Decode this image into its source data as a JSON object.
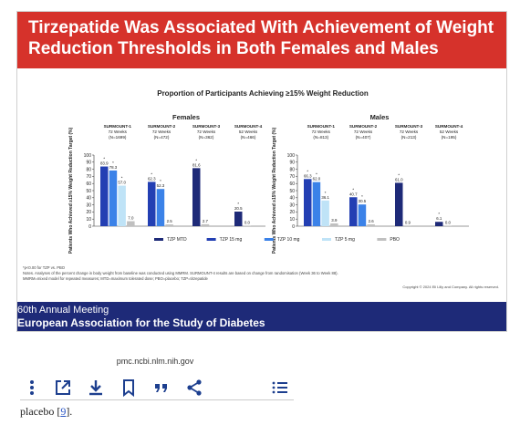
{
  "slide": {
    "title_line1": "Tirzepatide Was Associated With Achievement of Weight",
    "title_line2": "Reduction Thresholds in Both Females and Males",
    "footnote1": "*p<0.00 for TZP vs. PBO",
    "footnote2": "Notes. Analyses of the percent change in body weight from baseline was conducted using MMRM. SURMOUNT-4 results are based on change from randomisation (Week 36 to Week 88).",
    "footnote3": "MMRM=mixed model for repeated measures; MTD=maximum tolerated dose; PBO=placebo; TZP=tirzepatide",
    "copyright": "Copyright © 2024 Eli Lilly and Company. All rights reserved.",
    "meeting_line1": "60th Annual Meeting",
    "meeting_line2": "European Association for the Study of Diabetes"
  },
  "chart_data": {
    "type": "bar",
    "title": "Proportion of Participants Achieving ≥15% Weight Reduction",
    "ylabel": "Patients Who Achieved ≥15% Weight Reduction Target (%)",
    "ylim": [
      0,
      100
    ],
    "yticks": [
      0,
      10,
      20,
      30,
      40,
      50,
      60,
      70,
      80,
      90,
      100
    ],
    "legend": [
      {
        "name": "TZP MTD",
        "color": "#1e2a78"
      },
      {
        "name": "TZP 15 mg",
        "color": "#233fb3"
      },
      {
        "name": "TZP 10 mg",
        "color": "#3b82e8"
      },
      {
        "name": "TZP 5 mg",
        "color": "#bfe3f7"
      },
      {
        "name": "PBO",
        "color": "#c0c0c0"
      }
    ],
    "panels": [
      {
        "name": "Females",
        "groups": [
          {
            "line1": "SURMOUNT-1",
            "line2": "72 Weeks",
            "line3": "(N=1699)",
            "bars": [
              {
                "series": "TZP 15 mg",
                "value": 83.9,
                "label": "83.9",
                "star": true
              },
              {
                "series": "TZP 10 mg",
                "value": 78.3,
                "label": "78.3",
                "star": true
              },
              {
                "series": "TZP 5 mg",
                "value": 57.0,
                "label": "57.0",
                "star": true
              },
              {
                "series": "PBO",
                "value": 7.0,
                "label": "7.0",
                "star": false
              }
            ]
          },
          {
            "line1": "SURMOUNT-2",
            "line2": "72 Weeks",
            "line3": "(N=472)",
            "bars": [
              {
                "series": "TZP 15 mg",
                "value": 62.3,
                "label": "62.3",
                "star": true
              },
              {
                "series": "TZP 10 mg",
                "value": 52.3,
                "label": "52.3",
                "star": true
              },
              {
                "series": "PBO",
                "value": 2.5,
                "label": "2.5",
                "star": false
              }
            ]
          },
          {
            "line1": "SURMOUNT-3",
            "line2": "72 Weeks",
            "line3": "(N=362)",
            "bars": [
              {
                "series": "TZP MTD",
                "value": 81.6,
                "label": "81.6",
                "star": true
              },
              {
                "series": "PBO",
                "value": 2.7,
                "label": "2.7",
                "star": false
              }
            ]
          },
          {
            "line1": "SURMOUNT-4",
            "line2": "52 Weeks",
            "line3": "(N=466)",
            "bars": [
              {
                "series": "TZP MTD",
                "value": 20.5,
                "label": "20.5",
                "star": true
              },
              {
                "series": "PBO",
                "value": 0.0,
                "label": "0.0",
                "star": false
              }
            ]
          }
        ]
      },
      {
        "name": "Males",
        "groups": [
          {
            "line1": "SURMOUNT-1",
            "line2": "72 Weeks",
            "line3": "(N=813)",
            "bars": [
              {
                "series": "TZP 15 mg",
                "value": 66.3,
                "label": "66.3",
                "star": true
              },
              {
                "series": "TZP 10 mg",
                "value": 62.0,
                "label": "62.0",
                "star": true
              },
              {
                "series": "TZP 5 mg",
                "value": 36.1,
                "label": "36.1",
                "star": true
              },
              {
                "series": "PBO",
                "value": 3.9,
                "label": "3.9",
                "star": false
              }
            ]
          },
          {
            "line1": "SURMOUNT-2",
            "line2": "72 Weeks",
            "line3": "(N=407)",
            "bars": [
              {
                "series": "TZP 15 mg",
                "value": 40.7,
                "label": "40.7",
                "star": true
              },
              {
                "series": "TZP 10 mg",
                "value": 30.5,
                "label": "30.5",
                "star": true
              },
              {
                "series": "PBO",
                "value": 2.6,
                "label": "2.6",
                "star": false
              }
            ]
          },
          {
            "line1": "SURMOUNT-3",
            "line2": "72 Weeks",
            "line3": "(N=213)",
            "bars": [
              {
                "series": "TZP MTD",
                "value": 61.0,
                "label": "61.0",
                "star": true
              },
              {
                "series": "PBO",
                "value": 0.9,
                "label": "0.9",
                "star": false
              }
            ]
          },
          {
            "line1": "SURMOUNT-4",
            "line2": "52 Weeks",
            "line3": "(N=195)",
            "bars": [
              {
                "series": "TZP MTD",
                "value": 6.1,
                "label": "6.1",
                "star": true
              },
              {
                "series": "PBO",
                "value": 0.0,
                "label": "0.0",
                "star": false
              }
            ]
          }
        ]
      }
    ]
  },
  "source": "pmc.ncbi.nlm.nih.gov",
  "toolbar": {
    "icons": [
      "more-vertical-icon",
      "open-external-icon",
      "download-icon",
      "bookmark-icon",
      "quote-icon",
      "share-icon",
      "list-icon"
    ]
  },
  "body_text": {
    "prefix": "placebo [",
    "ref": "9",
    "suffix": "]."
  }
}
